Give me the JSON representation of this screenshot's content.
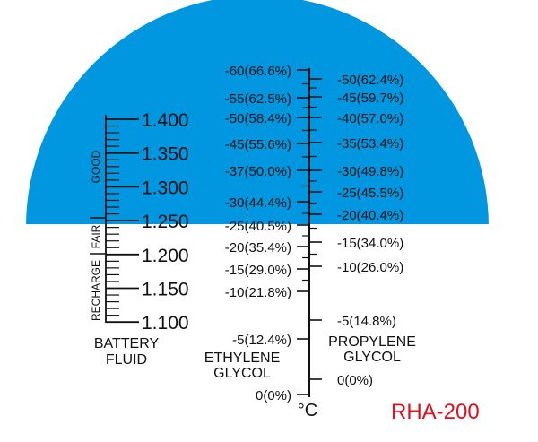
{
  "split_ratio": 0.36,
  "colors": {
    "top_fill": "#0097e0",
    "bottom_fill": "#ffffff",
    "ink": "#111111",
    "model": "#e0101e"
  },
  "battery": {
    "labels": [
      "1.400",
      "1.350",
      "1.300",
      "1.250",
      "1.200",
      "1.150",
      "1.100"
    ],
    "band_good": "GOOD",
    "band_fair": "FAIR",
    "band_recharge": "RECHARGE",
    "title_line1": "BATTERY",
    "title_line2": "FLUID"
  },
  "ethylene": {
    "labels": [
      "-60(66.6%)",
      "-55(62.5%)",
      "-50(58.4%)",
      "-45(55.6%)",
      "-37(50.0%)",
      "-30(44.4%)",
      "-25(40.5%)",
      "-20(35.4%)",
      "-15(29.0%)",
      "-10(21.8%)",
      "-5(12.4%)",
      "0(0%)"
    ],
    "title_line1": "ETHYLENE",
    "title_line2": "GLYCOL"
  },
  "propylene": {
    "labels": [
      "-50(62.4%)",
      "-45(59.7%)",
      "-40(57.0%)",
      "-35(53.4%)",
      "-30(49.8%)",
      "-25(45.5%)",
      "-20(40.4%)",
      "-15(34.0%)",
      "-10(26.0%)",
      "-5(14.8%)",
      "0(0%)"
    ],
    "title_line1": "PROPYLENE",
    "title_line2": "GLYCOL"
  },
  "unit": "°C",
  "model": "RHA-200"
}
